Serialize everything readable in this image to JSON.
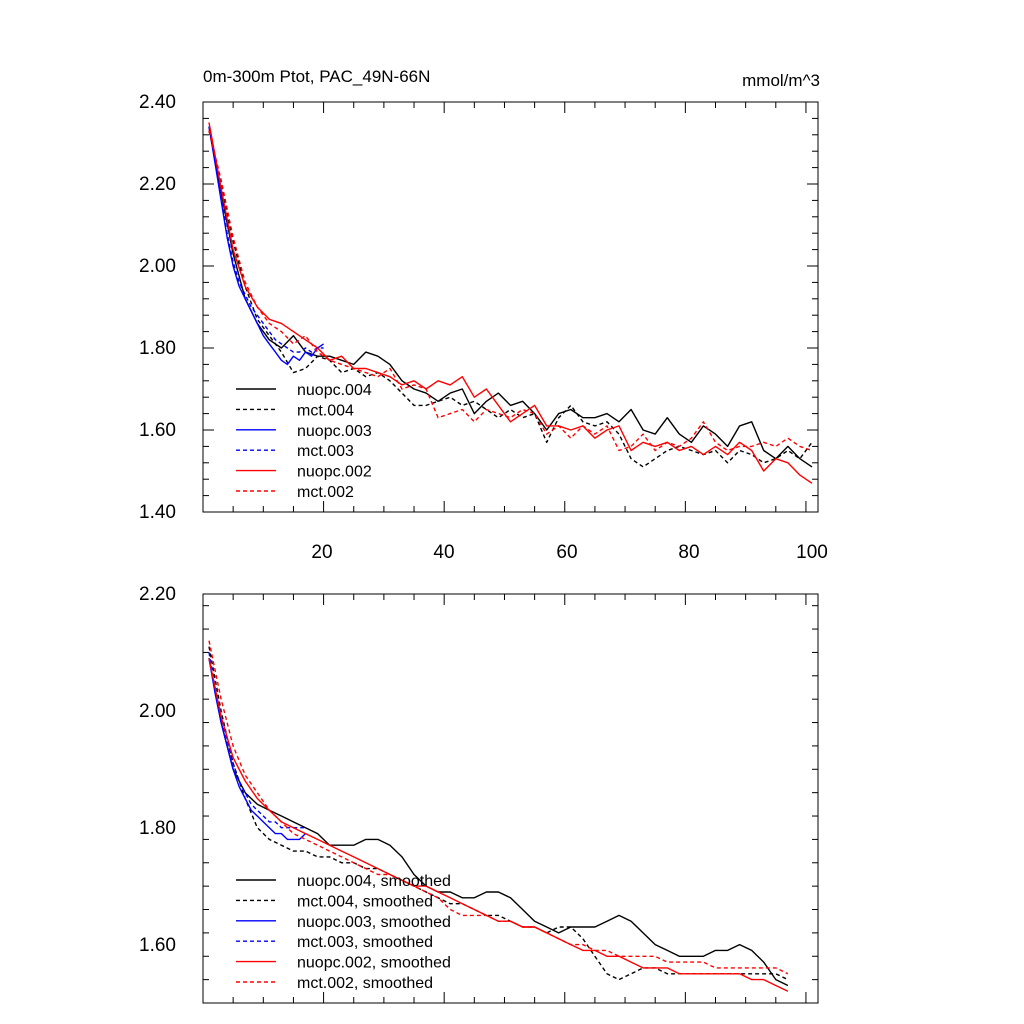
{
  "chart_data": [
    {
      "type": "line",
      "title_left": "0m-300m Ptot, PAC_49N-66N",
      "title_right": "mmol/m^3",
      "xlim": [
        0,
        102
      ],
      "ylim": [
        1.4,
        2.4
      ],
      "x_tick_labels": [
        "20",
        "40",
        "60",
        "80",
        "100"
      ],
      "y_tick_labels": [
        "1.40",
        "1.60",
        "1.80",
        "2.00",
        "2.20",
        "2.40"
      ],
      "legend_position": "bottom-left",
      "series": [
        {
          "name": "nuopc.004",
          "color": "#000000",
          "dash": "solid",
          "x": [
            1,
            3,
            5,
            7,
            9,
            11,
            13,
            15,
            17,
            19,
            21,
            23,
            25,
            27,
            29,
            31,
            33,
            35,
            37,
            39,
            41,
            43,
            45,
            47,
            49,
            51,
            53,
            55,
            57,
            59,
            61,
            63,
            65,
            67,
            69,
            71,
            73,
            75,
            77,
            79,
            81,
            83,
            85,
            87,
            89,
            91,
            93,
            95,
            97,
            99,
            101
          ],
          "y": [
            2.34,
            2.18,
            2.03,
            1.92,
            1.86,
            1.82,
            1.8,
            1.83,
            1.79,
            1.78,
            1.78,
            1.77,
            1.76,
            1.79,
            1.78,
            1.76,
            1.72,
            1.7,
            1.69,
            1.67,
            1.69,
            1.7,
            1.64,
            1.67,
            1.69,
            1.66,
            1.67,
            1.64,
            1.6,
            1.64,
            1.65,
            1.63,
            1.63,
            1.64,
            1.62,
            1.65,
            1.6,
            1.59,
            1.63,
            1.59,
            1.57,
            1.61,
            1.59,
            1.56,
            1.61,
            1.62,
            1.55,
            1.53,
            1.56,
            1.53,
            1.51
          ]
        },
        {
          "name": "mct.004",
          "color": "#000000",
          "dash": "dashed",
          "x": [
            1,
            3,
            5,
            7,
            9,
            11,
            13,
            15,
            17,
            19,
            21,
            23,
            25,
            27,
            29,
            31,
            33,
            35,
            37,
            39,
            41,
            43,
            45,
            47,
            49,
            51,
            53,
            55,
            57,
            59,
            61,
            63,
            65,
            67,
            69,
            71,
            73,
            75,
            77,
            79,
            81,
            83,
            85,
            87,
            89,
            91,
            93,
            95,
            97,
            99,
            101
          ],
          "y": [
            2.33,
            2.2,
            2.06,
            1.95,
            1.87,
            1.83,
            1.79,
            1.74,
            1.75,
            1.78,
            1.77,
            1.74,
            1.75,
            1.73,
            1.74,
            1.72,
            1.69,
            1.66,
            1.66,
            1.67,
            1.68,
            1.66,
            1.67,
            1.65,
            1.63,
            1.65,
            1.63,
            1.64,
            1.57,
            1.63,
            1.66,
            1.62,
            1.61,
            1.62,
            1.59,
            1.53,
            1.51,
            1.53,
            1.55,
            1.56,
            1.55,
            1.54,
            1.55,
            1.52,
            1.55,
            1.54,
            1.52,
            1.53,
            1.55,
            1.53,
            1.57
          ]
        },
        {
          "name": "nuopc.003",
          "color": "#0000ff",
          "dash": "solid",
          "x": [
            1,
            2,
            3,
            4,
            5,
            6,
            7,
            8,
            9,
            10,
            11,
            12,
            13,
            14,
            15,
            16,
            17,
            18,
            19,
            20
          ],
          "y": [
            2.34,
            2.25,
            2.16,
            2.07,
            2.0,
            1.95,
            1.92,
            1.89,
            1.86,
            1.83,
            1.81,
            1.79,
            1.77,
            1.76,
            1.78,
            1.77,
            1.79,
            1.78,
            1.8,
            1.81
          ]
        },
        {
          "name": "mct.003",
          "color": "#0000ff",
          "dash": "dashed",
          "x": [
            1,
            2,
            3,
            4,
            5,
            6,
            7,
            8,
            9,
            10,
            11,
            12,
            13,
            14,
            15,
            16,
            17,
            18,
            19,
            20
          ],
          "y": [
            2.34,
            2.26,
            2.17,
            2.08,
            2.01,
            1.96,
            1.93,
            1.9,
            1.88,
            1.86,
            1.84,
            1.82,
            1.81,
            1.8,
            1.79,
            1.79,
            1.8,
            1.79,
            1.8,
            1.8
          ]
        },
        {
          "name": "nuopc.002",
          "color": "#ff0000",
          "dash": "solid",
          "x": [
            1,
            3,
            5,
            7,
            9,
            11,
            13,
            15,
            17,
            19,
            21,
            23,
            25,
            27,
            29,
            31,
            33,
            35,
            37,
            39,
            41,
            43,
            45,
            47,
            49,
            51,
            53,
            55,
            57,
            59,
            61,
            63,
            65,
            67,
            69,
            71,
            73,
            75,
            77,
            79,
            81,
            83,
            85,
            87,
            89,
            91,
            93,
            95,
            97,
            99,
            101
          ],
          "y": [
            2.35,
            2.19,
            2.04,
            1.95,
            1.9,
            1.87,
            1.86,
            1.84,
            1.82,
            1.8,
            1.77,
            1.78,
            1.75,
            1.75,
            1.74,
            1.73,
            1.71,
            1.72,
            1.7,
            1.72,
            1.71,
            1.73,
            1.68,
            1.7,
            1.66,
            1.62,
            1.64,
            1.66,
            1.61,
            1.61,
            1.6,
            1.61,
            1.58,
            1.6,
            1.61,
            1.55,
            1.57,
            1.56,
            1.57,
            1.55,
            1.56,
            1.54,
            1.56,
            1.54,
            1.57,
            1.55,
            1.5,
            1.53,
            1.52,
            1.49,
            1.47
          ]
        },
        {
          "name": "mct.002",
          "color": "#ff0000",
          "dash": "dashed",
          "x": [
            1,
            3,
            5,
            7,
            9,
            11,
            13,
            15,
            17,
            19,
            21,
            23,
            25,
            27,
            29,
            31,
            33,
            35,
            37,
            39,
            41,
            43,
            45,
            47,
            49,
            51,
            53,
            55,
            57,
            59,
            61,
            63,
            65,
            67,
            69,
            71,
            73,
            75,
            77,
            79,
            81,
            83,
            85,
            87,
            89,
            91,
            93,
            95,
            97,
            99,
            101
          ],
          "y": [
            2.33,
            2.21,
            2.07,
            1.96,
            1.9,
            1.86,
            1.84,
            1.81,
            1.83,
            1.79,
            1.77,
            1.76,
            1.75,
            1.74,
            1.73,
            1.75,
            1.7,
            1.71,
            1.7,
            1.63,
            1.64,
            1.65,
            1.62,
            1.65,
            1.64,
            1.63,
            1.65,
            1.64,
            1.59,
            1.61,
            1.58,
            1.61,
            1.59,
            1.61,
            1.55,
            1.56,
            1.59,
            1.55,
            1.57,
            1.56,
            1.58,
            1.62,
            1.57,
            1.55,
            1.56,
            1.56,
            1.57,
            1.56,
            1.58,
            1.56,
            1.55
          ]
        }
      ]
    },
    {
      "type": "line",
      "xlim": [
        0,
        102
      ],
      "ylim": [
        1.5,
        2.2
      ],
      "x_tick_labels": [],
      "y_tick_labels": [
        "1.60",
        "1.80",
        "2.00",
        "2.20"
      ],
      "legend_position": "bottom-left",
      "series": [
        {
          "name": "nuopc.004, smoothed",
          "color": "#000000",
          "dash": "solid",
          "x": [
            1,
            3,
            5,
            7,
            9,
            11,
            13,
            15,
            17,
            19,
            21,
            23,
            25,
            27,
            29,
            31,
            33,
            35,
            37,
            39,
            41,
            43,
            45,
            47,
            49,
            51,
            53,
            55,
            57,
            59,
            61,
            63,
            65,
            67,
            69,
            71,
            73,
            75,
            77,
            79,
            81,
            83,
            85,
            87,
            89,
            91,
            93,
            95,
            97
          ],
          "y": [
            2.09,
            1.98,
            1.9,
            1.86,
            1.84,
            1.83,
            1.82,
            1.81,
            1.8,
            1.79,
            1.77,
            1.77,
            1.77,
            1.78,
            1.78,
            1.77,
            1.75,
            1.72,
            1.7,
            1.69,
            1.69,
            1.68,
            1.68,
            1.69,
            1.69,
            1.68,
            1.66,
            1.64,
            1.63,
            1.62,
            1.63,
            1.63,
            1.63,
            1.64,
            1.65,
            1.64,
            1.62,
            1.6,
            1.59,
            1.58,
            1.58,
            1.58,
            1.59,
            1.59,
            1.6,
            1.59,
            1.57,
            1.54,
            1.53
          ]
        },
        {
          "name": "mct.004, smoothed",
          "color": "#000000",
          "dash": "dashed",
          "x": [
            1,
            3,
            5,
            7,
            9,
            11,
            13,
            15,
            17,
            19,
            21,
            23,
            25,
            27,
            29,
            31,
            33,
            35,
            37,
            39,
            41,
            43,
            45,
            47,
            49,
            51,
            53,
            55,
            57,
            59,
            61,
            63,
            65,
            67,
            69,
            71,
            73,
            75,
            77,
            79,
            81,
            83,
            85,
            87,
            89,
            91,
            93,
            95,
            97
          ],
          "y": [
            2.11,
            2.0,
            1.91,
            1.85,
            1.8,
            1.78,
            1.77,
            1.76,
            1.76,
            1.75,
            1.75,
            1.74,
            1.74,
            1.73,
            1.73,
            1.72,
            1.71,
            1.7,
            1.69,
            1.68,
            1.67,
            1.67,
            1.66,
            1.65,
            1.65,
            1.64,
            1.63,
            1.63,
            1.62,
            1.63,
            1.63,
            1.61,
            1.58,
            1.55,
            1.54,
            1.55,
            1.56,
            1.56,
            1.55,
            1.55,
            1.55,
            1.55,
            1.55,
            1.55,
            1.55,
            1.55,
            1.55,
            1.55,
            1.54
          ]
        },
        {
          "name": "nuopc.003, smoothed",
          "color": "#0000ff",
          "dash": "solid",
          "x": [
            1,
            2,
            3,
            4,
            5,
            6,
            7,
            8,
            9,
            10,
            11,
            12,
            13,
            14,
            15,
            16,
            17
          ],
          "y": [
            2.09,
            2.03,
            1.98,
            1.94,
            1.9,
            1.87,
            1.85,
            1.83,
            1.82,
            1.81,
            1.8,
            1.79,
            1.79,
            1.78,
            1.78,
            1.78,
            1.79
          ]
        },
        {
          "name": "mct.003, smoothed",
          "color": "#0000ff",
          "dash": "dashed",
          "x": [
            1,
            2,
            3,
            4,
            5,
            6,
            7,
            8,
            9,
            10,
            11,
            12,
            13,
            14,
            15,
            16,
            17
          ],
          "y": [
            2.1,
            2.04,
            1.99,
            1.95,
            1.91,
            1.88,
            1.86,
            1.84,
            1.83,
            1.82,
            1.81,
            1.81,
            1.8,
            1.8,
            1.8,
            1.8,
            1.8
          ]
        },
        {
          "name": "nuopc.002, smoothed",
          "color": "#ff0000",
          "dash": "solid",
          "x": [
            1,
            3,
            5,
            7,
            9,
            11,
            13,
            15,
            17,
            19,
            21,
            23,
            25,
            27,
            29,
            31,
            33,
            35,
            37,
            39,
            41,
            43,
            45,
            47,
            49,
            51,
            53,
            55,
            57,
            59,
            61,
            63,
            65,
            67,
            69,
            71,
            73,
            75,
            77,
            79,
            81,
            83,
            85,
            87,
            89,
            91,
            93,
            95,
            97
          ],
          "y": [
            2.09,
            1.99,
            1.92,
            1.88,
            1.85,
            1.83,
            1.81,
            1.8,
            1.79,
            1.78,
            1.77,
            1.76,
            1.75,
            1.74,
            1.73,
            1.72,
            1.71,
            1.7,
            1.7,
            1.69,
            1.68,
            1.67,
            1.66,
            1.65,
            1.64,
            1.64,
            1.63,
            1.63,
            1.62,
            1.61,
            1.6,
            1.59,
            1.59,
            1.58,
            1.58,
            1.57,
            1.56,
            1.56,
            1.56,
            1.55,
            1.55,
            1.55,
            1.55,
            1.55,
            1.55,
            1.54,
            1.54,
            1.53,
            1.52
          ]
        },
        {
          "name": "mct.002, smoothed",
          "color": "#ff0000",
          "dash": "dashed",
          "x": [
            1,
            3,
            5,
            7,
            9,
            11,
            13,
            15,
            17,
            19,
            21,
            23,
            25,
            27,
            29,
            31,
            33,
            35,
            37,
            39,
            41,
            43,
            45,
            47,
            49,
            51,
            53,
            55,
            57,
            59,
            61,
            63,
            65,
            67,
            69,
            71,
            73,
            75,
            77,
            79,
            81,
            83,
            85,
            87,
            89,
            91,
            93,
            95,
            97
          ],
          "y": [
            2.12,
            2.02,
            1.94,
            1.89,
            1.86,
            1.83,
            1.81,
            1.79,
            1.78,
            1.77,
            1.76,
            1.75,
            1.74,
            1.73,
            1.72,
            1.72,
            1.71,
            1.7,
            1.69,
            1.68,
            1.66,
            1.65,
            1.65,
            1.65,
            1.64,
            1.64,
            1.63,
            1.63,
            1.62,
            1.61,
            1.6,
            1.6,
            1.59,
            1.59,
            1.58,
            1.58,
            1.58,
            1.58,
            1.57,
            1.57,
            1.57,
            1.57,
            1.56,
            1.56,
            1.56,
            1.56,
            1.56,
            1.56,
            1.55
          ]
        }
      ]
    }
  ]
}
